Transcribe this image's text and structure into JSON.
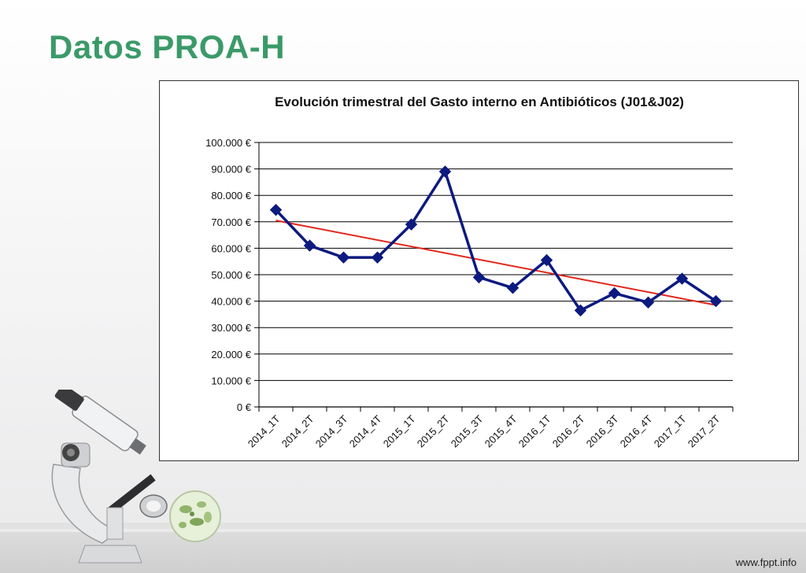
{
  "slide": {
    "title": "Datos PROA-H",
    "footer": "www.fppt.info",
    "title_color": "#3a9a68"
  },
  "illustration": {
    "icons": [
      "microscope-icon",
      "bacteria-petri-icon"
    ]
  },
  "chart_data": {
    "type": "line",
    "title": "Evolución trimestral del Gasto interno en Antibióticos (J01&J02)",
    "xlabel": "",
    "ylabel": "",
    "categories": [
      "2014_1T",
      "2014_2T",
      "2014_3T",
      "2014_4T",
      "2015_1T",
      "2015_2T",
      "2015_3T",
      "2015_4T",
      "2016_1T",
      "2016_2T",
      "2016_3T",
      "2016_4T",
      "2017_1T",
      "2017_2T"
    ],
    "series": [
      {
        "values": [
          74500,
          61000,
          56500,
          56500,
          69000,
          89000,
          49000,
          45000,
          55500,
          36500,
          43000,
          39500,
          48500,
          40000
        ],
        "color": "#0d1a80",
        "marker": "diamond"
      }
    ],
    "trendline": {
      "type": "linear",
      "color": "#e2261c",
      "start": 70500,
      "end": 38500
    },
    "ylim": [
      0,
      100000
    ],
    "ytick_step": 10000,
    "ytick_labels": [
      "0 €",
      "10.000 €",
      "20.000 €",
      "30.000 €",
      "40.000 €",
      "50.000 €",
      "60.000 €",
      "70.000 €",
      "80.000 €",
      "90.000 €",
      "100.000 €"
    ],
    "grid": true,
    "legend": "none"
  }
}
